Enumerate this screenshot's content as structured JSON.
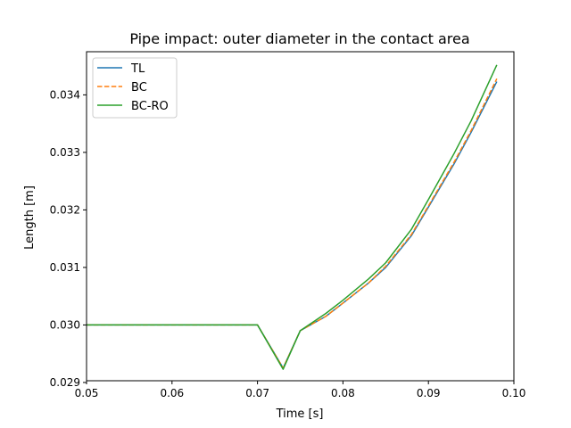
{
  "chart_data": {
    "type": "line",
    "title": "Pipe impact: outer diameter in the contact area",
    "xlabel": "Time [s]",
    "ylabel": "Length [m]",
    "xlim": [
      0.05,
      0.1
    ],
    "ylim": [
      0.02903,
      0.03475
    ],
    "xticks": [
      0.05,
      0.06,
      0.07,
      0.08,
      0.09,
      0.1
    ],
    "xtick_labels": [
      "0.05",
      "0.06",
      "0.07",
      "0.08",
      "0.09",
      "0.10"
    ],
    "yticks": [
      0.029,
      0.03,
      0.031,
      0.032,
      0.033,
      0.034
    ],
    "ytick_labels": [
      "0.029",
      "0.030",
      "0.031",
      "0.032",
      "0.033",
      "0.034"
    ],
    "grid": false,
    "legend_position": "top-left",
    "series": [
      {
        "name": "TL",
        "color": "#1f77b4",
        "style": "solid",
        "x": [
          0.05,
          0.07,
          0.073,
          0.075,
          0.078,
          0.08,
          0.083,
          0.085,
          0.088,
          0.09,
          0.093,
          0.095,
          0.098
        ],
        "y": [
          0.03,
          0.03,
          0.02925,
          0.0299,
          0.03015,
          0.03038,
          0.03073,
          0.031,
          0.03155,
          0.03205,
          0.0328,
          0.03335,
          0.03423
        ]
      },
      {
        "name": "BC",
        "color": "#ff7f0e",
        "style": "dashed",
        "x": [
          0.05,
          0.07,
          0.073,
          0.075,
          0.078,
          0.08,
          0.083,
          0.085,
          0.088,
          0.09,
          0.093,
          0.095,
          0.098
        ],
        "y": [
          0.03,
          0.03,
          0.02925,
          0.0299,
          0.03015,
          0.03038,
          0.03073,
          0.03102,
          0.03157,
          0.03207,
          0.03283,
          0.03338,
          0.03428
        ]
      },
      {
        "name": "BC-RO",
        "color": "#2ca02c",
        "style": "solid",
        "x": [
          0.05,
          0.07,
          0.073,
          0.075,
          0.078,
          0.08,
          0.083,
          0.085,
          0.088,
          0.09,
          0.093,
          0.095,
          0.098
        ],
        "y": [
          0.03,
          0.03,
          0.02923,
          0.0299,
          0.0302,
          0.03043,
          0.0308,
          0.03108,
          0.03166,
          0.03218,
          0.03298,
          0.03355,
          0.03452
        ]
      }
    ]
  }
}
